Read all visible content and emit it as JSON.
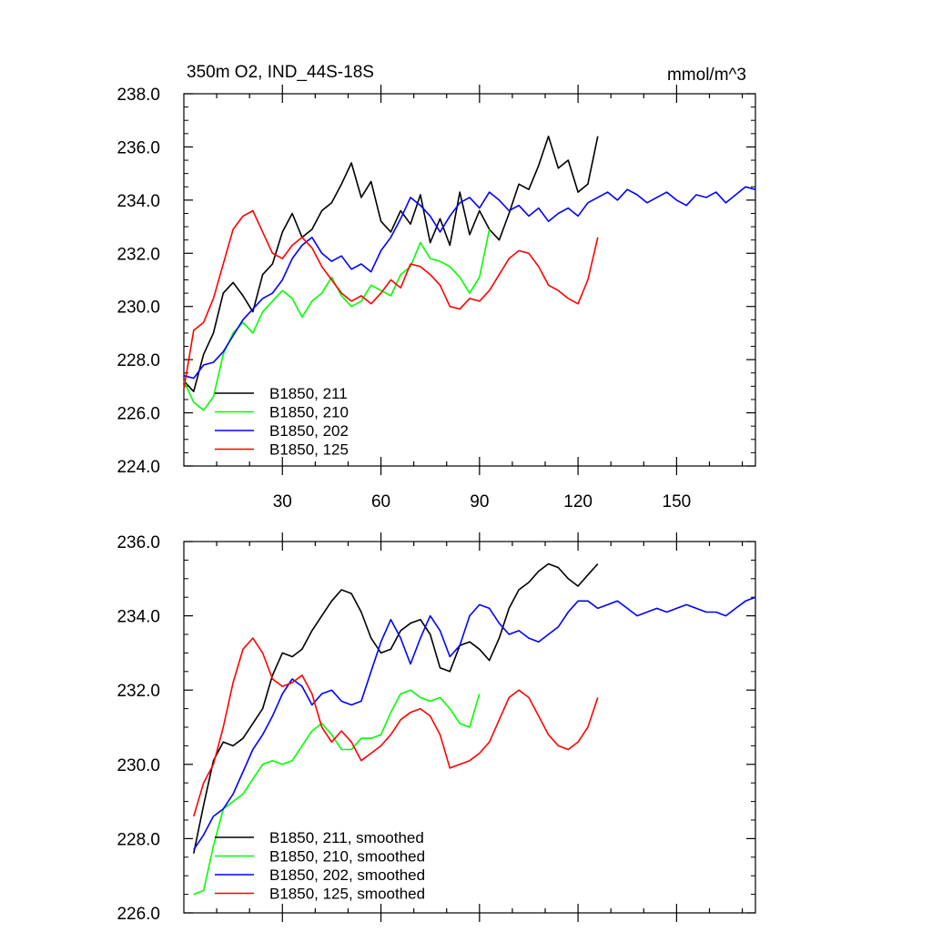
{
  "chart_data": [
    {
      "type": "line",
      "title": "350m O2, IND_44S-18S",
      "units": "mmol/m^3",
      "xlabel": "",
      "ylabel": "",
      "xlim": [
        0,
        174
      ],
      "ylim": [
        224,
        238
      ],
      "xticks": [
        30,
        60,
        90,
        120,
        150
      ],
      "xtick_labels": [
        "30",
        "60",
        "90",
        "120",
        "150"
      ],
      "yticks": [
        224,
        226,
        228,
        230,
        232,
        234,
        236,
        238
      ],
      "ytick_labels": [
        "224.0",
        "226.0",
        "228.0",
        "230.0",
        "232.0",
        "234.0",
        "236.0",
        "238.0"
      ],
      "legend_position": "bottom-left",
      "series": [
        {
          "name": "B1850, 211",
          "color": "#000000",
          "x": [
            0,
            3,
            6,
            9,
            12,
            15,
            18,
            21,
            24,
            27,
            30,
            33,
            36,
            39,
            42,
            45,
            48,
            51,
            54,
            57,
            60,
            63,
            66,
            69,
            72,
            75,
            78,
            81,
            84,
            87,
            90,
            93,
            96,
            99,
            102,
            105,
            108,
            111,
            114,
            117,
            120,
            123,
            126
          ],
          "values": [
            227.2,
            226.8,
            228.2,
            229.0,
            230.5,
            230.9,
            230.4,
            229.8,
            231.2,
            231.6,
            232.8,
            233.5,
            232.6,
            232.9,
            233.6,
            233.9,
            234.6,
            235.4,
            234.1,
            234.7,
            233.2,
            232.8,
            233.6,
            233.1,
            234.2,
            232.4,
            233.3,
            232.3,
            234.3,
            232.7,
            233.6,
            232.9,
            232.5,
            233.5,
            234.6,
            234.4,
            235.3,
            236.4,
            235.2,
            235.5,
            234.3,
            234.6,
            236.4
          ]
        },
        {
          "name": "B1850, 210",
          "color": "#00ff00",
          "x": [
            0,
            3,
            6,
            9,
            12,
            15,
            18,
            21,
            24,
            27,
            30,
            33,
            36,
            39,
            42,
            45,
            48,
            51,
            54,
            57,
            60,
            63,
            66,
            69,
            72,
            75,
            78,
            81,
            84,
            87,
            90,
            93
          ],
          "values": [
            227.2,
            226.4,
            226.1,
            226.6,
            228.2,
            229.0,
            229.4,
            229.0,
            229.8,
            230.2,
            230.6,
            230.3,
            229.6,
            230.2,
            230.5,
            231.1,
            230.4,
            230.0,
            230.2,
            230.8,
            230.6,
            230.4,
            231.2,
            231.5,
            232.4,
            231.8,
            231.7,
            231.5,
            231.1,
            230.5,
            231.1,
            232.9
          ]
        },
        {
          "name": "B1850, 202",
          "color": "#0000ff",
          "x": [
            0,
            3,
            6,
            9,
            12,
            15,
            18,
            21,
            24,
            27,
            30,
            33,
            36,
            39,
            42,
            45,
            48,
            51,
            54,
            57,
            60,
            63,
            66,
            69,
            72,
            75,
            78,
            81,
            84,
            87,
            90,
            93,
            96,
            99,
            102,
            105,
            108,
            111,
            114,
            117,
            120,
            123,
            126,
            129,
            132,
            135,
            138,
            141,
            144,
            147,
            150,
            153,
            156,
            159,
            162,
            165,
            168,
            171,
            174
          ],
          "values": [
            227.4,
            227.3,
            227.8,
            227.9,
            228.3,
            228.9,
            229.5,
            229.9,
            230.3,
            230.5,
            231.0,
            231.8,
            232.3,
            232.6,
            232.0,
            231.7,
            231.9,
            231.4,
            231.6,
            231.3,
            232.1,
            232.6,
            233.3,
            234.1,
            233.8,
            233.4,
            232.8,
            233.4,
            233.9,
            234.1,
            233.7,
            234.3,
            234.0,
            233.6,
            233.8,
            233.4,
            233.7,
            233.2,
            233.5,
            233.7,
            233.4,
            233.9,
            234.1,
            234.3,
            234.0,
            234.4,
            234.2,
            233.9,
            234.1,
            234.3,
            234.0,
            233.8,
            234.2,
            234.1,
            234.3,
            233.9,
            234.2,
            234.5,
            234.4
          ]
        },
        {
          "name": "B1850, 125",
          "color": "#ff0000",
          "x": [
            0,
            3,
            6,
            9,
            12,
            15,
            18,
            21,
            24,
            27,
            30,
            33,
            36,
            39,
            42,
            45,
            48,
            51,
            54,
            57,
            60,
            63,
            66,
            69,
            72,
            75,
            78,
            81,
            84,
            87,
            90,
            93,
            96,
            99,
            102,
            105,
            108,
            111,
            114,
            117,
            120,
            123,
            126
          ],
          "values": [
            226.9,
            229.1,
            229.4,
            230.3,
            231.6,
            232.9,
            233.4,
            233.6,
            232.8,
            232.0,
            231.8,
            232.3,
            232.6,
            232.2,
            231.5,
            231.0,
            230.5,
            230.2,
            230.4,
            230.1,
            230.5,
            231.0,
            230.7,
            231.6,
            231.5,
            231.2,
            230.8,
            230.0,
            229.9,
            230.3,
            230.2,
            230.6,
            231.2,
            231.8,
            232.1,
            232.0,
            231.5,
            230.8,
            230.6,
            230.3,
            230.1,
            231.0,
            232.6
          ]
        }
      ]
    },
    {
      "type": "line",
      "title": "",
      "xlabel": "",
      "ylabel": "",
      "xlim": [
        0,
        174
      ],
      "ylim": [
        226,
        236
      ],
      "xticks": [
        30,
        60,
        90,
        120,
        150
      ],
      "yticks": [
        226,
        228,
        230,
        232,
        234,
        236
      ],
      "ytick_labels": [
        "226.0",
        "228.0",
        "230.0",
        "232.0",
        "234.0",
        "236.0"
      ],
      "legend_position": "bottom-left",
      "series": [
        {
          "name": "B1850, 211, smoothed",
          "color": "#000000",
          "x": [
            3,
            6,
            9,
            12,
            15,
            18,
            21,
            24,
            27,
            30,
            33,
            36,
            39,
            42,
            45,
            48,
            51,
            54,
            57,
            60,
            63,
            66,
            69,
            72,
            75,
            78,
            81,
            84,
            87,
            90,
            93,
            96,
            99,
            102,
            105,
            108,
            111,
            114,
            117,
            120,
            123,
            126
          ],
          "values": [
            227.6,
            228.9,
            230.1,
            230.6,
            230.5,
            230.7,
            231.1,
            231.5,
            232.4,
            233.0,
            232.9,
            233.1,
            233.6,
            234.0,
            234.4,
            234.7,
            234.6,
            234.1,
            233.4,
            233.0,
            233.1,
            233.6,
            233.8,
            233.9,
            233.5,
            232.6,
            232.5,
            233.2,
            233.3,
            233.1,
            232.8,
            233.4,
            234.2,
            234.7,
            234.9,
            235.2,
            235.4,
            235.3,
            235.0,
            234.8,
            235.1,
            235.4
          ]
        },
        {
          "name": "B1850, 210, smoothed",
          "color": "#00ff00",
          "x": [
            3,
            6,
            9,
            12,
            15,
            18,
            21,
            24,
            27,
            30,
            33,
            36,
            39,
            42,
            45,
            48,
            51,
            54,
            57,
            60,
            63,
            66,
            69,
            72,
            75,
            78,
            81,
            84,
            87,
            90
          ],
          "values": [
            226.5,
            226.6,
            227.8,
            228.8,
            229.0,
            229.2,
            229.6,
            230.0,
            230.1,
            230.0,
            230.1,
            230.5,
            230.9,
            231.1,
            230.8,
            230.4,
            230.4,
            230.7,
            230.7,
            230.8,
            231.4,
            231.9,
            232.0,
            231.8,
            231.7,
            231.8,
            231.5,
            231.1,
            231.0,
            231.9
          ]
        },
        {
          "name": "B1850, 202, smoothed",
          "color": "#0000ff",
          "x": [
            3,
            6,
            9,
            12,
            15,
            18,
            21,
            24,
            27,
            30,
            33,
            36,
            39,
            42,
            45,
            48,
            51,
            54,
            57,
            60,
            63,
            66,
            69,
            72,
            75,
            78,
            81,
            84,
            87,
            90,
            93,
            96,
            99,
            102,
            105,
            108,
            111,
            114,
            117,
            120,
            123,
            126,
            129,
            132,
            135,
            138,
            141,
            144,
            147,
            150,
            153,
            156,
            159,
            162,
            165,
            168,
            171,
            174
          ],
          "values": [
            227.7,
            228.1,
            228.6,
            228.8,
            229.2,
            229.8,
            230.4,
            230.8,
            231.3,
            231.9,
            232.3,
            232.1,
            231.6,
            231.9,
            232.0,
            231.7,
            231.6,
            231.7,
            232.5,
            233.3,
            233.9,
            233.4,
            232.7,
            233.4,
            234.0,
            233.6,
            232.9,
            233.2,
            234.0,
            234.3,
            234.2,
            233.8,
            233.5,
            233.6,
            233.4,
            233.3,
            233.5,
            233.7,
            234.1,
            234.4,
            234.4,
            234.2,
            234.3,
            234.4,
            234.2,
            234.0,
            234.1,
            234.2,
            234.1,
            234.2,
            234.3,
            234.2,
            234.1,
            234.1,
            234.0,
            234.2,
            234.4,
            234.5
          ]
        },
        {
          "name": "B1850, 125, smoothed",
          "color": "#ff0000",
          "x": [
            3,
            6,
            9,
            12,
            15,
            18,
            21,
            24,
            27,
            30,
            33,
            36,
            39,
            42,
            45,
            48,
            51,
            54,
            57,
            60,
            63,
            66,
            69,
            72,
            75,
            78,
            81,
            84,
            87,
            90,
            93,
            96,
            99,
            102,
            105,
            108,
            111,
            114,
            117,
            120,
            123,
            126
          ],
          "values": [
            228.6,
            229.5,
            230.0,
            231.0,
            232.2,
            233.1,
            233.4,
            233.0,
            232.3,
            232.1,
            232.2,
            232.4,
            231.9,
            231.0,
            230.6,
            230.9,
            230.6,
            230.1,
            230.3,
            230.5,
            230.8,
            231.2,
            231.4,
            231.5,
            231.3,
            230.8,
            229.9,
            230.0,
            230.1,
            230.3,
            230.6,
            231.2,
            231.8,
            232.0,
            231.8,
            231.3,
            230.8,
            230.5,
            230.4,
            230.6,
            231.0,
            231.8
          ]
        }
      ]
    }
  ]
}
